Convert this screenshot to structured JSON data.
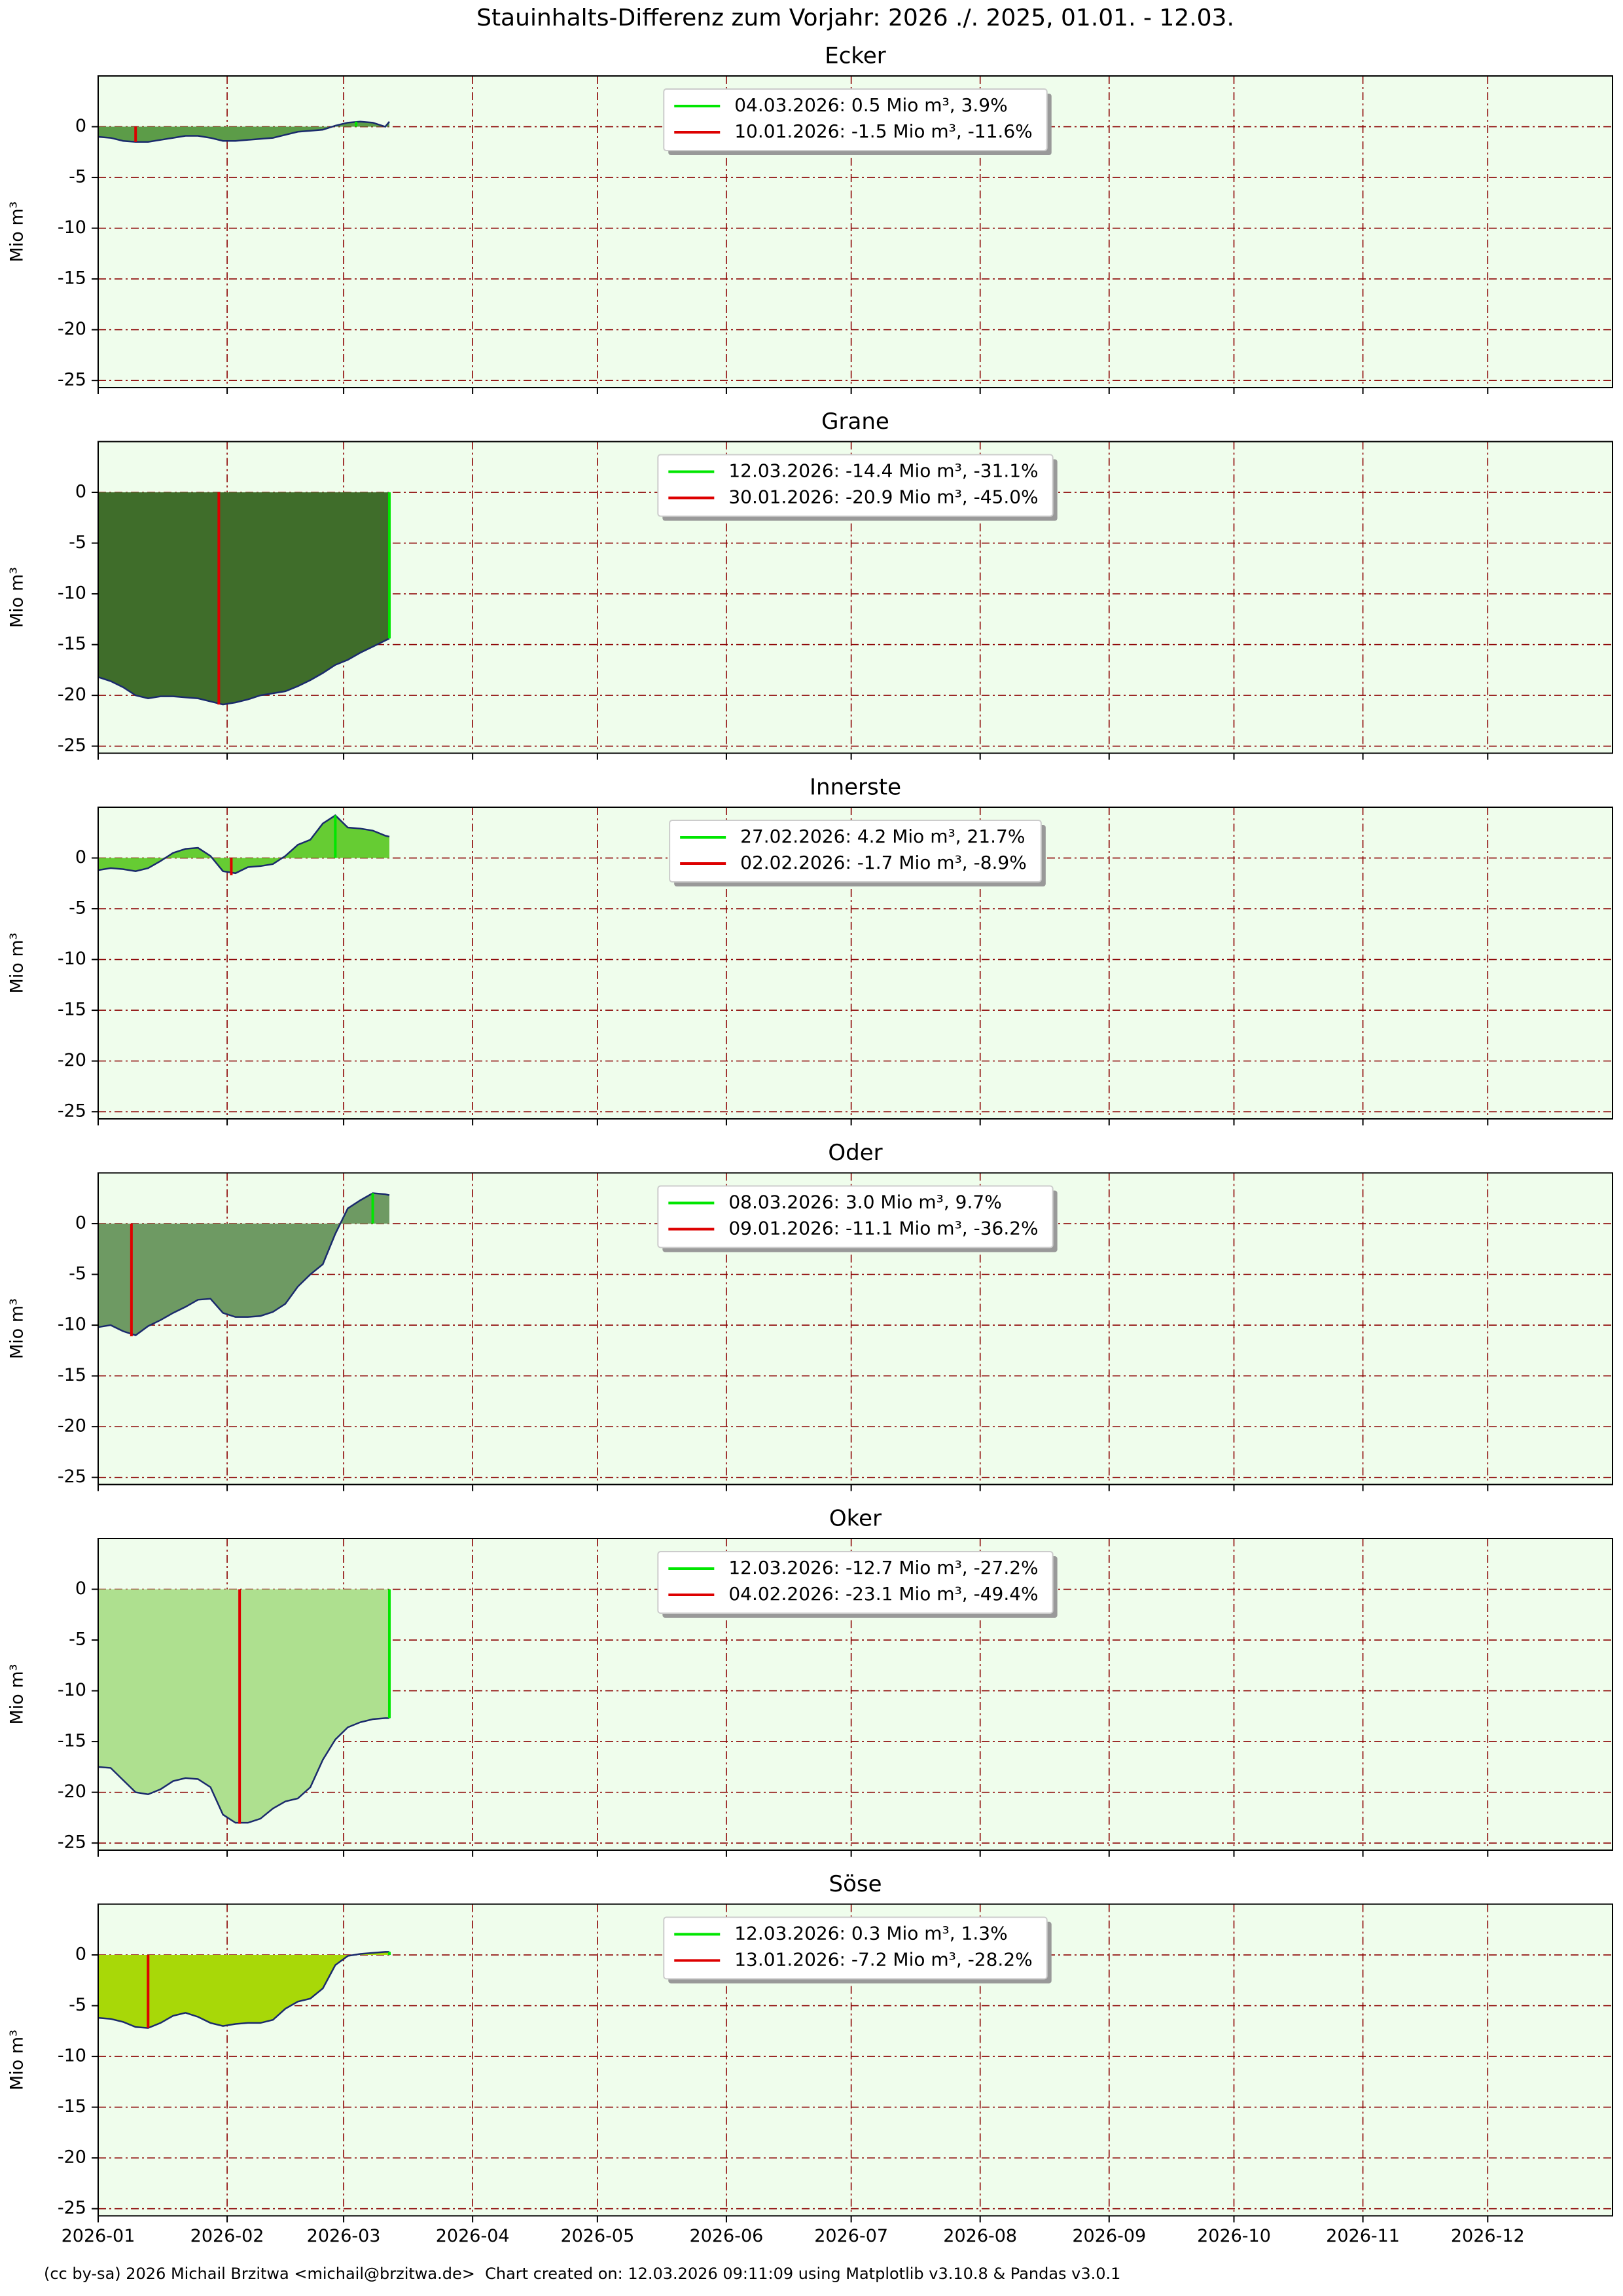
{
  "title": "Stauinhalts-Differenz zum Vorjahr: 2026 ./. 2025, 01.01. - 12.03.",
  "footer": "(cc by-sa) 2026 Michail Brzitwa <michail@brzitwa.de>  Chart created on: 12.03.2026 09:11:09 using Matplotlib v3.10.8 & Pandas v3.0.1",
  "chart_data": [
    {
      "type": "area",
      "title": "Ecker",
      "y_label": "Mio m³",
      "fill": "#5c9c48",
      "line_color": "#1a2a6c",
      "x": [
        "2026-01-01",
        "2026-01-04",
        "2026-01-07",
        "2026-01-10",
        "2026-01-13",
        "2026-01-16",
        "2026-01-19",
        "2026-01-22",
        "2026-01-25",
        "2026-01-28",
        "2026-01-31",
        "2026-02-03",
        "2026-02-06",
        "2026-02-09",
        "2026-02-12",
        "2026-02-15",
        "2026-02-18",
        "2026-02-21",
        "2026-02-24",
        "2026-02-27",
        "2026-03-02",
        "2026-03-05",
        "2026-03-08",
        "2026-03-11",
        "2026-03-12"
      ],
      "values": [
        -1.0,
        -1.1,
        -1.4,
        -1.5,
        -1.5,
        -1.3,
        -1.1,
        -0.9,
        -0.9,
        -1.1,
        -1.4,
        -1.4,
        -1.3,
        -1.2,
        -1.1,
        -0.8,
        -0.5,
        -0.4,
        -0.3,
        0.1,
        0.4,
        0.5,
        0.4,
        0.0,
        0.5
      ],
      "markers": [
        {
          "name": "04.03.2026: 0.5 Mio m³, 3.9%",
          "x": "2026-03-04",
          "value": 0.5,
          "color": "#00e600"
        },
        {
          "name": "10.01.2026: -1.5 Mio m³, -11.6%",
          "x": "2026-01-10",
          "value": -1.5,
          "color": "#dd0000"
        }
      ],
      "xlim": [
        "2026-01-01",
        "2026-12-31"
      ],
      "ylim": [
        -25.7,
        5.0
      ],
      "yticks": [
        0,
        -5,
        -10,
        -15,
        -20,
        -25
      ],
      "xticks": [
        "2026-01-01",
        "2026-02-01",
        "2026-03-01",
        "2026-04-01",
        "2026-05-01",
        "2026-06-01",
        "2026-07-01",
        "2026-08-01",
        "2026-09-01",
        "2026-10-01",
        "2026-11-01",
        "2026-12-01"
      ],
      "grid": true,
      "legend": "upper center",
      "background": "#effdec"
    },
    {
      "type": "area",
      "title": "Grane",
      "y_label": "Mio m³",
      "fill": "#3f6d2a",
      "line_color": "#1a2a6c",
      "x": [
        "2026-01-01",
        "2026-01-04",
        "2026-01-07",
        "2026-01-10",
        "2026-01-13",
        "2026-01-16",
        "2026-01-19",
        "2026-01-22",
        "2026-01-25",
        "2026-01-28",
        "2026-01-31",
        "2026-02-03",
        "2026-02-06",
        "2026-02-09",
        "2026-02-12",
        "2026-02-15",
        "2026-02-18",
        "2026-02-21",
        "2026-02-24",
        "2026-02-27",
        "2026-03-02",
        "2026-03-05",
        "2026-03-08",
        "2026-03-11",
        "2026-03-12"
      ],
      "values": [
        -18.2,
        -18.6,
        -19.2,
        -20.0,
        -20.3,
        -20.1,
        -20.1,
        -20.2,
        -20.3,
        -20.6,
        -20.9,
        -20.7,
        -20.4,
        -20.0,
        -19.8,
        -19.6,
        -19.1,
        -18.5,
        -17.8,
        -17.0,
        -16.5,
        -15.8,
        -15.2,
        -14.6,
        -14.4
      ],
      "markers": [
        {
          "name": "12.03.2026: -14.4 Mio m³, -31.1%",
          "x": "2026-03-12",
          "value": -14.4,
          "color": "#00e600"
        },
        {
          "name": "30.01.2026: -20.9 Mio m³, -45.0%",
          "x": "2026-01-30",
          "value": -20.9,
          "color": "#dd0000"
        }
      ],
      "xlim": [
        "2026-01-01",
        "2026-12-31"
      ],
      "ylim": [
        -25.7,
        5.0
      ],
      "yticks": [
        0,
        -5,
        -10,
        -15,
        -20,
        -25
      ],
      "xticks": [
        "2026-01-01",
        "2026-02-01",
        "2026-03-01",
        "2026-04-01",
        "2026-05-01",
        "2026-06-01",
        "2026-07-01",
        "2026-08-01",
        "2026-09-01",
        "2026-10-01",
        "2026-11-01",
        "2026-12-01"
      ],
      "grid": true,
      "legend": "upper center",
      "background": "#effdec"
    },
    {
      "type": "area",
      "title": "Innerste",
      "y_label": "Mio m³",
      "fill": "#66cc33",
      "line_color": "#1a2a6c",
      "x": [
        "2026-01-01",
        "2026-01-04",
        "2026-01-07",
        "2026-01-10",
        "2026-01-13",
        "2026-01-16",
        "2026-01-19",
        "2026-01-22",
        "2026-01-25",
        "2026-01-28",
        "2026-01-31",
        "2026-02-03",
        "2026-02-06",
        "2026-02-09",
        "2026-02-12",
        "2026-02-15",
        "2026-02-18",
        "2026-02-21",
        "2026-02-24",
        "2026-02-27",
        "2026-03-02",
        "2026-03-05",
        "2026-03-08",
        "2026-03-11",
        "2026-03-12"
      ],
      "values": [
        -1.2,
        -1.0,
        -1.1,
        -1.3,
        -1.0,
        -0.3,
        0.5,
        0.9,
        1.0,
        0.2,
        -1.3,
        -1.5,
        -0.9,
        -0.8,
        -0.6,
        0.2,
        1.3,
        1.8,
        3.4,
        4.2,
        3.0,
        2.9,
        2.7,
        2.2,
        2.1
      ],
      "markers": [
        {
          "name": "27.02.2026: 4.2 Mio m³, 21.7%",
          "x": "2026-02-27",
          "value": 4.2,
          "color": "#00e600"
        },
        {
          "name": "02.02.2026: -1.7 Mio m³, -8.9%",
          "x": "2026-02-02",
          "value": -1.7,
          "color": "#dd0000"
        }
      ],
      "xlim": [
        "2026-01-01",
        "2026-12-31"
      ],
      "ylim": [
        -25.7,
        5.0
      ],
      "yticks": [
        0,
        -5,
        -10,
        -15,
        -20,
        -25
      ],
      "xticks": [
        "2026-01-01",
        "2026-02-01",
        "2026-03-01",
        "2026-04-01",
        "2026-05-01",
        "2026-06-01",
        "2026-07-01",
        "2026-08-01",
        "2026-09-01",
        "2026-10-01",
        "2026-11-01",
        "2026-12-01"
      ],
      "grid": true,
      "legend": "upper center",
      "background": "#effdec"
    },
    {
      "type": "area",
      "title": "Oder",
      "y_label": "Mio m³",
      "fill": "#6e9a63",
      "line_color": "#1a2a6c",
      "x": [
        "2026-01-01",
        "2026-01-04",
        "2026-01-07",
        "2026-01-10",
        "2026-01-13",
        "2026-01-16",
        "2026-01-19",
        "2026-01-22",
        "2026-01-25",
        "2026-01-28",
        "2026-01-31",
        "2026-02-03",
        "2026-02-06",
        "2026-02-09",
        "2026-02-12",
        "2026-02-15",
        "2026-02-18",
        "2026-02-21",
        "2026-02-24",
        "2026-02-27",
        "2026-03-02",
        "2026-03-05",
        "2026-03-08",
        "2026-03-11",
        "2026-03-12"
      ],
      "values": [
        -10.2,
        -10.0,
        -10.6,
        -11.0,
        -10.1,
        -9.5,
        -8.8,
        -8.2,
        -7.5,
        -7.4,
        -8.8,
        -9.2,
        -9.2,
        -9.1,
        -8.7,
        -7.9,
        -6.2,
        -5.0,
        -4.0,
        -1.0,
        1.5,
        2.3,
        3.0,
        2.9,
        2.8
      ],
      "markers": [
        {
          "name": "08.03.2026: 3.0 Mio m³, 9.7%",
          "x": "2026-03-08",
          "value": 3.0,
          "color": "#00e600"
        },
        {
          "name": "09.01.2026: -11.1 Mio m³, -36.2%",
          "x": "2026-01-09",
          "value": -11.1,
          "color": "#dd0000"
        }
      ],
      "xlim": [
        "2026-01-01",
        "2026-12-31"
      ],
      "ylim": [
        -25.7,
        5.0
      ],
      "yticks": [
        0,
        -5,
        -10,
        -15,
        -20,
        -25
      ],
      "xticks": [
        "2026-01-01",
        "2026-02-01",
        "2026-03-01",
        "2026-04-01",
        "2026-05-01",
        "2026-06-01",
        "2026-07-01",
        "2026-08-01",
        "2026-09-01",
        "2026-10-01",
        "2026-11-01",
        "2026-12-01"
      ],
      "grid": true,
      "legend": "upper center",
      "background": "#effdec"
    },
    {
      "type": "area",
      "title": "Oker",
      "y_label": "Mio m³",
      "fill": "#aee08f",
      "line_color": "#1a2a6c",
      "x": [
        "2026-01-01",
        "2026-01-04",
        "2026-01-07",
        "2026-01-10",
        "2026-01-13",
        "2026-01-16",
        "2026-01-19",
        "2026-01-22",
        "2026-01-25",
        "2026-01-28",
        "2026-01-31",
        "2026-02-03",
        "2026-02-06",
        "2026-02-09",
        "2026-02-12",
        "2026-02-15",
        "2026-02-18",
        "2026-02-21",
        "2026-02-24",
        "2026-02-27",
        "2026-03-02",
        "2026-03-05",
        "2026-03-08",
        "2026-03-11",
        "2026-03-12"
      ],
      "values": [
        -17.5,
        -17.6,
        -18.8,
        -20.0,
        -20.2,
        -19.7,
        -18.9,
        -18.6,
        -18.7,
        -19.5,
        -22.2,
        -23.0,
        -23.0,
        -22.6,
        -21.6,
        -20.9,
        -20.6,
        -19.5,
        -16.8,
        -14.8,
        -13.6,
        -13.1,
        -12.8,
        -12.7,
        -12.7
      ],
      "markers": [
        {
          "name": "12.03.2026: -12.7 Mio m³, -27.2%",
          "x": "2026-03-12",
          "value": -12.7,
          "color": "#00e600"
        },
        {
          "name": "04.02.2026: -23.1 Mio m³, -49.4%",
          "x": "2026-02-04",
          "value": -23.1,
          "color": "#dd0000"
        }
      ],
      "xlim": [
        "2026-01-01",
        "2026-12-31"
      ],
      "ylim": [
        -25.7,
        5.0
      ],
      "yticks": [
        0,
        -5,
        -10,
        -15,
        -20,
        -25
      ],
      "xticks": [
        "2026-01-01",
        "2026-02-01",
        "2026-03-01",
        "2026-04-01",
        "2026-05-01",
        "2026-06-01",
        "2026-07-01",
        "2026-08-01",
        "2026-09-01",
        "2026-10-01",
        "2026-11-01",
        "2026-12-01"
      ],
      "grid": true,
      "legend": "upper center",
      "background": "#effdec"
    },
    {
      "type": "area",
      "title": "Söse",
      "y_label": "Mio m³",
      "fill": "#a8d808",
      "line_color": "#1a2a6c",
      "x": [
        "2026-01-01",
        "2026-01-04",
        "2026-01-07",
        "2026-01-10",
        "2026-01-13",
        "2026-01-16",
        "2026-01-19",
        "2026-01-22",
        "2026-01-25",
        "2026-01-28",
        "2026-01-31",
        "2026-02-03",
        "2026-02-06",
        "2026-02-09",
        "2026-02-12",
        "2026-02-15",
        "2026-02-18",
        "2026-02-21",
        "2026-02-24",
        "2026-02-27",
        "2026-03-02",
        "2026-03-05",
        "2026-03-08",
        "2026-03-11",
        "2026-03-12"
      ],
      "values": [
        -6.2,
        -6.3,
        -6.6,
        -7.1,
        -7.2,
        -6.7,
        -6.0,
        -5.7,
        -6.1,
        -6.7,
        -7.0,
        -6.8,
        -6.7,
        -6.7,
        -6.4,
        -5.3,
        -4.6,
        -4.3,
        -3.3,
        -1.0,
        -0.1,
        0.1,
        0.2,
        0.3,
        0.3
      ],
      "markers": [
        {
          "name": "12.03.2026: 0.3 Mio m³, 1.3%",
          "x": "2026-03-12",
          "value": 0.3,
          "color": "#00e600"
        },
        {
          "name": "13.01.2026: -7.2 Mio m³, -28.2%",
          "x": "2026-01-13",
          "value": -7.2,
          "color": "#dd0000"
        }
      ],
      "xlim": [
        "2026-01-01",
        "2026-12-31"
      ],
      "ylim": [
        -25.7,
        5.0
      ],
      "yticks": [
        0,
        -5,
        -10,
        -15,
        -20,
        -25
      ],
      "xticks": [
        {
          "value": "2026-01-01",
          "label": "2026-01"
        },
        {
          "value": "2026-02-01",
          "label": "2026-02"
        },
        {
          "value": "2026-03-01",
          "label": "2026-03"
        },
        {
          "value": "2026-04-01",
          "label": "2026-04"
        },
        {
          "value": "2026-05-01",
          "label": "2026-05"
        },
        {
          "value": "2026-06-01",
          "label": "2026-06"
        },
        {
          "value": "2026-07-01",
          "label": "2026-07"
        },
        {
          "value": "2026-08-01",
          "label": "2026-08"
        },
        {
          "value": "2026-09-01",
          "label": "2026-09"
        },
        {
          "value": "2026-10-01",
          "label": "2026-10"
        },
        {
          "value": "2026-11-01",
          "label": "2026-11"
        },
        {
          "value": "2026-12-01",
          "label": "2026-12"
        }
      ],
      "grid": true,
      "legend": "upper center",
      "background": "#effdec"
    }
  ]
}
